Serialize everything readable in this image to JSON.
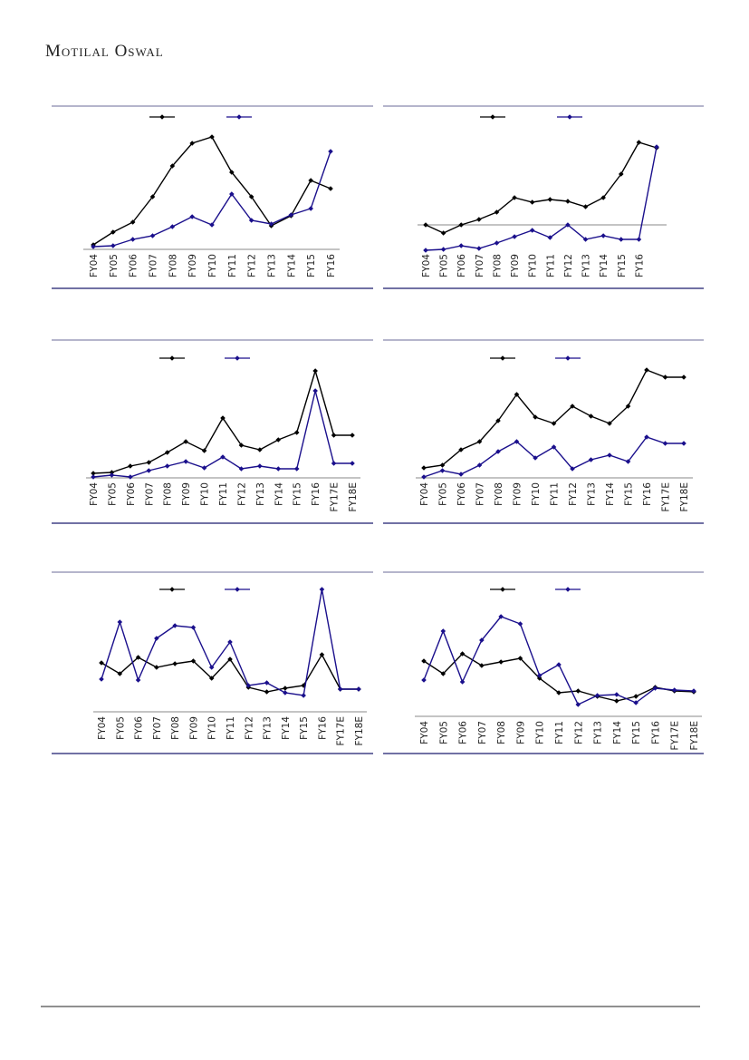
{
  "header": {
    "logo_text": "Motilal Oswal"
  },
  "colors": {
    "series_a": "#000000",
    "series_b": "#1a0f8c",
    "frame_top": "#6b6b9a",
    "frame_bottom": "#1c1c6e",
    "axis": "#888888"
  },
  "chart_data": [
    {
      "type": "line",
      "title": "",
      "categories": [
        "FY04",
        "FY05",
        "FY06",
        "FY07",
        "FY08",
        "FY09",
        "FY10",
        "FY11",
        "FY12",
        "FY13",
        "FY14",
        "FY15",
        "FY16"
      ],
      "series": [
        {
          "name": "",
          "values": [
            5,
            19,
            30,
            58,
            92,
            117,
            124,
            85,
            58,
            26,
            37,
            76,
            67
          ]
        },
        {
          "name": "",
          "values": [
            3,
            4,
            11,
            15,
            25,
            36,
            27,
            61,
            32,
            28,
            38,
            45,
            108
          ]
        }
      ],
      "ylim": [
        0,
        135
      ],
      "grid": false,
      "legend": "top-center"
    },
    {
      "type": "line",
      "title": "",
      "categories": [
        "FY04",
        "FY05",
        "FY06",
        "FY07",
        "FY08",
        "FY09",
        "FY10",
        "FY11",
        "FY12",
        "FY13",
        "FY14",
        "FY15",
        "FY16",
        ""
      ],
      "series": [
        {
          "name": "",
          "values": [
            0,
            -9,
            0,
            6,
            14,
            30,
            25,
            28,
            26,
            20,
            30,
            56,
            91,
            85
          ]
        },
        {
          "name": "",
          "values": [
            -28,
            -27,
            -23,
            -26,
            -20,
            -13,
            -6,
            -14,
            0,
            -16,
            -12,
            -16,
            -16,
            86
          ]
        }
      ],
      "ylim": [
        -30,
        105
      ],
      "grid": false,
      "legend": "top-center"
    },
    {
      "type": "line",
      "title": "",
      "categories": [
        "FY04",
        "FY05",
        "FY06",
        "FY07",
        "FY08",
        "FY09",
        "FY10",
        "FY11",
        "FY12",
        "FY13",
        "FY14",
        "FY15",
        "FY16",
        "FY17E",
        "FY18E"
      ],
      "series": [
        {
          "name": "",
          "values": [
            5,
            6,
            13,
            17,
            28,
            40,
            30,
            66,
            36,
            31,
            42,
            50,
            118,
            47,
            47
          ]
        },
        {
          "name": "",
          "values": [
            1,
            3,
            1,
            8,
            13,
            18,
            11,
            23,
            10,
            13,
            10,
            10,
            96,
            16,
            16
          ]
        }
      ],
      "ylim": [
        0,
        125
      ],
      "grid": false,
      "legend": "top-center"
    },
    {
      "type": "line",
      "title": "",
      "categories": [
        "FY04",
        "FY05",
        "FY06",
        "FY07",
        "FY08",
        "FY09",
        "FY10",
        "FY11",
        "FY12",
        "FY13",
        "FY14",
        "FY15",
        "FY16",
        "FY17E",
        "FY18E"
      ],
      "series": [
        {
          "name": "",
          "values": [
            11,
            14,
            31,
            40,
            63,
            92,
            67,
            60,
            79,
            68,
            60,
            79,
            119,
            111,
            111
          ]
        },
        {
          "name": "",
          "values": [
            1,
            8,
            4,
            14,
            29,
            40,
            22,
            34,
            10,
            20,
            25,
            18,
            45,
            38,
            38
          ]
        }
      ],
      "ylim": [
        0,
        125
      ],
      "grid": false,
      "legend": "top-center"
    },
    {
      "type": "line",
      "title": "",
      "categories": [
        "FY04",
        "FY05",
        "FY06",
        "FY07",
        "FY08",
        "FY09",
        "FY10",
        "FY11",
        "FY12",
        "FY13",
        "FY14",
        "FY15",
        "FY16",
        "FY17E",
        "FY18E"
      ],
      "series": [
        {
          "name": "",
          "values": [
            54,
            42,
            60,
            49,
            53,
            56,
            37,
            58,
            27,
            22,
            26,
            29,
            63,
            25,
            25
          ]
        },
        {
          "name": "",
          "values": [
            36,
            99,
            35,
            81,
            95,
            93,
            49,
            77,
            29,
            32,
            21,
            18,
            135,
            25,
            25
          ]
        }
      ],
      "ylim": [
        0,
        140
      ],
      "grid": false,
      "legend": "top-center"
    },
    {
      "type": "line",
      "title": "",
      "categories": [
        "FY04",
        "FY05",
        "FY06",
        "FY07",
        "FY08",
        "FY09",
        "FY10",
        "FY11",
        "FY12",
        "FY13",
        "FY14",
        "FY15",
        "FY16",
        "FY17E",
        "FY18E"
      ],
      "series": [
        {
          "name": "",
          "values": [
            61,
            47,
            69,
            56,
            60,
            64,
            42,
            26,
            28,
            22,
            17,
            22,
            32,
            28,
            27
          ]
        },
        {
          "name": "",
          "values": [
            40,
            94,
            38,
            84,
            110,
            102,
            45,
            57,
            13,
            23,
            24,
            15,
            31,
            29,
            28
          ]
        }
      ],
      "ylim": [
        0,
        125
      ],
      "grid": false,
      "legend": "top-center"
    }
  ]
}
